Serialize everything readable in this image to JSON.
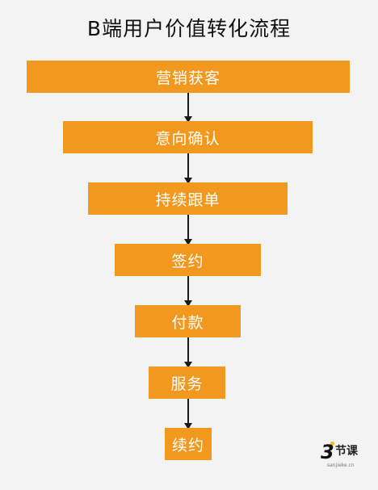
{
  "title": "B端用户价值转化流程",
  "stages": [
    {
      "label": "营销获客"
    },
    {
      "label": "意向确认"
    },
    {
      "label": "持续跟单"
    },
    {
      "label": "签约"
    },
    {
      "label": "付款"
    },
    {
      "label": "服务"
    },
    {
      "label": "续约"
    }
  ],
  "logo": {
    "mark": "3",
    "text": "节课",
    "sub": "sanjieke.cn"
  },
  "colors": {
    "stage_fill": "#f2981e",
    "stage_text": "#ffffff",
    "background": "#f3f3f3",
    "arrow": "#1a1a1a"
  }
}
